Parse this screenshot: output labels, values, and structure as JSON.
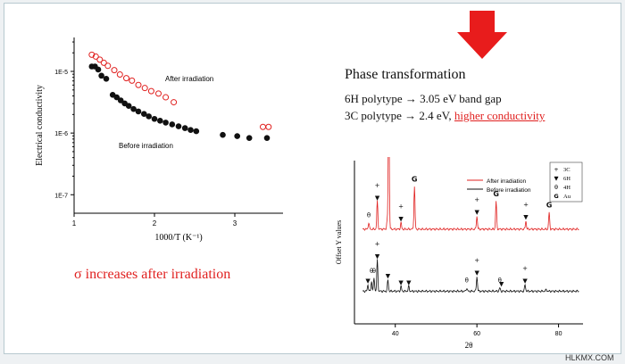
{
  "phase_box": {
    "title": "Phase transformation",
    "line1": "6H polytype → 3.05 eV band gap",
    "line2_prefix": "3C polytype → 2.4 eV, ",
    "line2_highlight": "higher conductivity"
  },
  "sigma_statement": "σ increases after irradiation",
  "watermark": "HLKMX.COM",
  "colors": {
    "red": "#e0201f",
    "black": "#111111",
    "arrow": "#e81c1c"
  },
  "icons": {
    "big_arrow": "down-arrow-icon"
  },
  "chart_data": [
    {
      "type": "scatter",
      "xlabel": "1000/T (K⁻¹)",
      "ylabel": "Electrical conductivity",
      "xlim": [
        1,
        3.6
      ],
      "ylim_log10": [
        -7.3,
        -4.45
      ],
      "yscale": "log",
      "x_ticks": [
        1,
        2,
        3
      ],
      "y_ticks": [
        "1E-7",
        "1E-6",
        "1E-5"
      ],
      "y_tick_values": [
        -7,
        -6,
        -5
      ],
      "annotations": [
        "After irradiation",
        "Before irradiation"
      ],
      "series": [
        {
          "name": "After irradiation",
          "marker": "open-circle",
          "color": "#e0201f",
          "x": [
            1.22,
            1.27,
            1.32,
            1.37,
            1.42,
            1.5,
            1.57,
            1.65,
            1.72,
            1.8,
            1.88,
            1.96,
            2.05,
            2.14,
            2.24,
            3.35,
            3.42
          ],
          "y_log10": [
            -4.73,
            -4.76,
            -4.81,
            -4.86,
            -4.91,
            -4.98,
            -5.05,
            -5.11,
            -5.15,
            -5.22,
            -5.27,
            -5.32,
            -5.36,
            -5.42,
            -5.5,
            -5.9,
            -5.9
          ]
        },
        {
          "name": "Before irradiation",
          "marker": "filled-circle",
          "color": "#111111",
          "x": [
            1.22,
            1.26,
            1.3,
            1.34,
            1.4,
            1.48,
            1.53,
            1.58,
            1.63,
            1.68,
            1.74,
            1.8,
            1.87,
            1.93,
            2.0,
            2.07,
            2.14,
            2.22,
            2.3,
            2.38,
            2.45,
            2.52,
            2.85,
            3.03,
            3.18,
            3.4
          ],
          "y_log10": [
            -4.92,
            -4.92,
            -4.97,
            -5.07,
            -5.12,
            -5.38,
            -5.42,
            -5.47,
            -5.52,
            -5.56,
            -5.61,
            -5.65,
            -5.69,
            -5.73,
            -5.77,
            -5.8,
            -5.83,
            -5.86,
            -5.89,
            -5.92,
            -5.95,
            -5.97,
            -6.03,
            -6.05,
            -6.08,
            -6.08
          ]
        }
      ]
    },
    {
      "type": "line",
      "xlabel": "2θ",
      "ylabel": "Offset Y values",
      "xlim": [
        30,
        86
      ],
      "ylim": [
        0,
        1
      ],
      "x_ticks": [
        40,
        60,
        80
      ],
      "legend_placement": "top-center",
      "series": [
        {
          "name": "After irradiation",
          "color": "#e0201f"
        },
        {
          "name": "Before irradiation",
          "color": "#111111"
        }
      ],
      "phase_legend": [
        {
          "symbol": "+",
          "label": "3C"
        },
        {
          "symbol": "▼",
          "label": "6H"
        },
        {
          "symbol": "θ",
          "label": "4H"
        },
        {
          "symbol": "G",
          "label": "Au"
        }
      ],
      "red_peaks": [
        {
          "x": 33.5,
          "h": 0.04
        },
        {
          "x": 35.6,
          "h": 0.17
        },
        {
          "x": 38.0,
          "h": 0.05
        },
        {
          "x": 38.4,
          "h": 0.83
        },
        {
          "x": 41.4,
          "h": 0.04
        },
        {
          "x": 44.7,
          "h": 0.26
        },
        {
          "x": 60.0,
          "h": 0.08
        },
        {
          "x": 64.7,
          "h": 0.17
        },
        {
          "x": 72.0,
          "h": 0.05
        },
        {
          "x": 77.7,
          "h": 0.1
        }
      ],
      "red_baseline": 0.58,
      "black_peaks": [
        {
          "x": 33.3,
          "h": 0.04
        },
        {
          "x": 34.2,
          "h": 0.06
        },
        {
          "x": 34.8,
          "h": 0.08
        },
        {
          "x": 35.6,
          "h": 0.19
        },
        {
          "x": 38.2,
          "h": 0.07
        },
        {
          "x": 41.4,
          "h": 0.03
        },
        {
          "x": 43.3,
          "h": 0.03
        },
        {
          "x": 57.5,
          "h": 0.02
        },
        {
          "x": 60.0,
          "h": 0.09
        },
        {
          "x": 65.6,
          "h": 0.02
        },
        {
          "x": 71.8,
          "h": 0.04
        },
        {
          "x": 77.0,
          "h": 0.01
        }
      ],
      "black_baseline": 0.2,
      "red_markers": [
        {
          "x": 33.5,
          "sym": "θ"
        },
        {
          "x": 35.6,
          "sym": "+"
        },
        {
          "x": 35.6,
          "sym": "▼"
        },
        {
          "x": 38.1,
          "sym": "▼"
        },
        {
          "x": 38.4,
          "sym": "G"
        },
        {
          "x": 41.4,
          "sym": "+"
        },
        {
          "x": 41.4,
          "sym": "▼"
        },
        {
          "x": 44.7,
          "sym": "G"
        },
        {
          "x": 60.0,
          "sym": "+"
        },
        {
          "x": 60.0,
          "sym": "▼"
        },
        {
          "x": 64.7,
          "sym": "G"
        },
        {
          "x": 72.0,
          "sym": "+"
        },
        {
          "x": 72.0,
          "sym": "▼"
        },
        {
          "x": 77.7,
          "sym": "G"
        }
      ],
      "black_markers": [
        {
          "x": 33.3,
          "sym": "▼"
        },
        {
          "x": 34.2,
          "sym": "θ"
        },
        {
          "x": 34.8,
          "sym": "θ"
        },
        {
          "x": 35.6,
          "sym": "+"
        },
        {
          "x": 35.6,
          "sym": "▼"
        },
        {
          "x": 38.2,
          "sym": "▼"
        },
        {
          "x": 41.4,
          "sym": "▼"
        },
        {
          "x": 43.3,
          "sym": "▼"
        },
        {
          "x": 57.5,
          "sym": "θ"
        },
        {
          "x": 60.0,
          "sym": "+"
        },
        {
          "x": 60.0,
          "sym": "▼"
        },
        {
          "x": 65.6,
          "sym": "θ"
        },
        {
          "x": 66.0,
          "sym": "▼"
        },
        {
          "x": 71.8,
          "sym": "+"
        },
        {
          "x": 71.8,
          "sym": "▼"
        }
      ]
    }
  ]
}
